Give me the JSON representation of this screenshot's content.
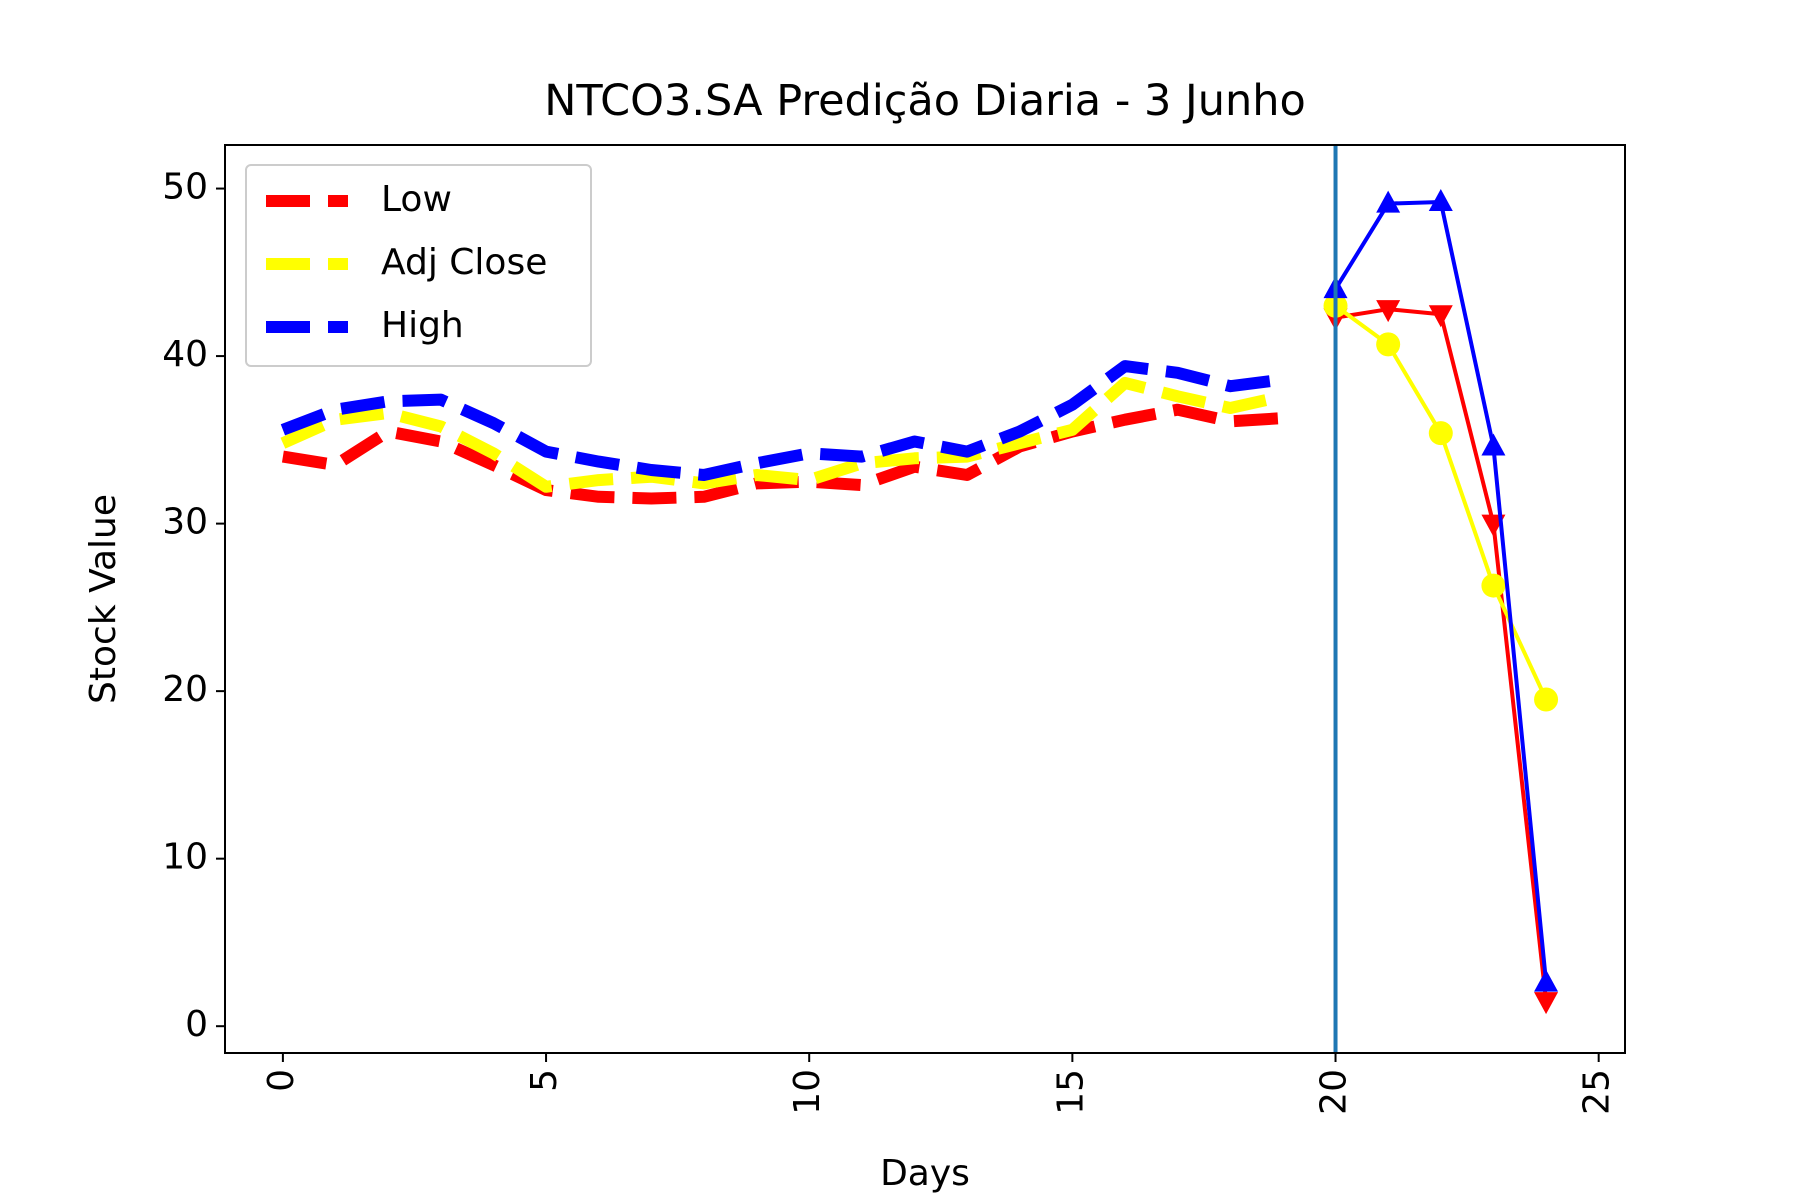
{
  "chart_data": {
    "type": "line",
    "title": "NTCO3.SA Predição Diaria - 3 Junho",
    "xlabel": "Days",
    "ylabel": "Stock Value",
    "xlim": [
      -1.1,
      25.5
    ],
    "ylim": [
      -1.6,
      52.6
    ],
    "xticks": [
      0,
      5,
      10,
      15,
      20,
      25
    ],
    "yticks": [
      0,
      10,
      20,
      30,
      40,
      50
    ],
    "xtick_rotation": -90,
    "grid": false,
    "legend_position": "upper-left",
    "vertical_line": {
      "x": 20,
      "color": "#1f77b4"
    },
    "series": [
      {
        "name": "Low",
        "color": "#ff0000",
        "historical": {
          "x": [
            0,
            1,
            2,
            3,
            4,
            5,
            6,
            7,
            8,
            9,
            10,
            11,
            12,
            13,
            14,
            15,
            16,
            17,
            18,
            19
          ],
          "y": [
            34.0,
            33.5,
            35.5,
            34.9,
            33.5,
            32.0,
            31.6,
            31.5,
            31.6,
            32.4,
            32.5,
            32.3,
            33.4,
            32.9,
            34.6,
            35.5,
            36.2,
            36.8,
            36.1,
            36.3
          ]
        },
        "predicted": {
          "x": [
            20,
            21,
            22,
            23,
            24
          ],
          "y": [
            42.3,
            42.8,
            42.5,
            30.0,
            1.5
          ],
          "marker": "triangle-down"
        }
      },
      {
        "name": "Adj Close",
        "color": "#ffff00",
        "historical": {
          "x": [
            0,
            1,
            2,
            3,
            4,
            5,
            6,
            7,
            8,
            9,
            10,
            11,
            12,
            13,
            14,
            15,
            16,
            17,
            18,
            19
          ],
          "y": [
            34.8,
            36.2,
            36.6,
            35.8,
            34.2,
            32.2,
            32.6,
            32.8,
            32.4,
            32.9,
            32.6,
            33.6,
            33.9,
            34.0,
            34.8,
            35.6,
            38.4,
            37.6,
            36.9,
            37.6
          ]
        },
        "predicted": {
          "x": [
            20,
            21,
            22,
            23,
            24
          ],
          "y": [
            43.0,
            40.7,
            35.4,
            26.3,
            19.5
          ],
          "marker": "circle"
        }
      },
      {
        "name": "High",
        "color": "#0000ff",
        "historical": {
          "x": [
            0,
            1,
            2,
            3,
            4,
            5,
            6,
            7,
            8,
            9,
            10,
            11,
            12,
            13,
            14,
            15,
            16,
            17,
            18,
            19
          ],
          "y": [
            35.6,
            36.8,
            37.3,
            37.4,
            36.0,
            34.3,
            33.7,
            33.2,
            32.9,
            33.6,
            34.2,
            34.0,
            34.9,
            34.3,
            35.5,
            37.1,
            39.4,
            39.0,
            38.2,
            38.6
          ]
        },
        "predicted": {
          "x": [
            20,
            21,
            22,
            23,
            24
          ],
          "y": [
            44.0,
            49.1,
            49.2,
            34.6,
            2.6
          ],
          "marker": "triangle-up"
        }
      }
    ]
  }
}
